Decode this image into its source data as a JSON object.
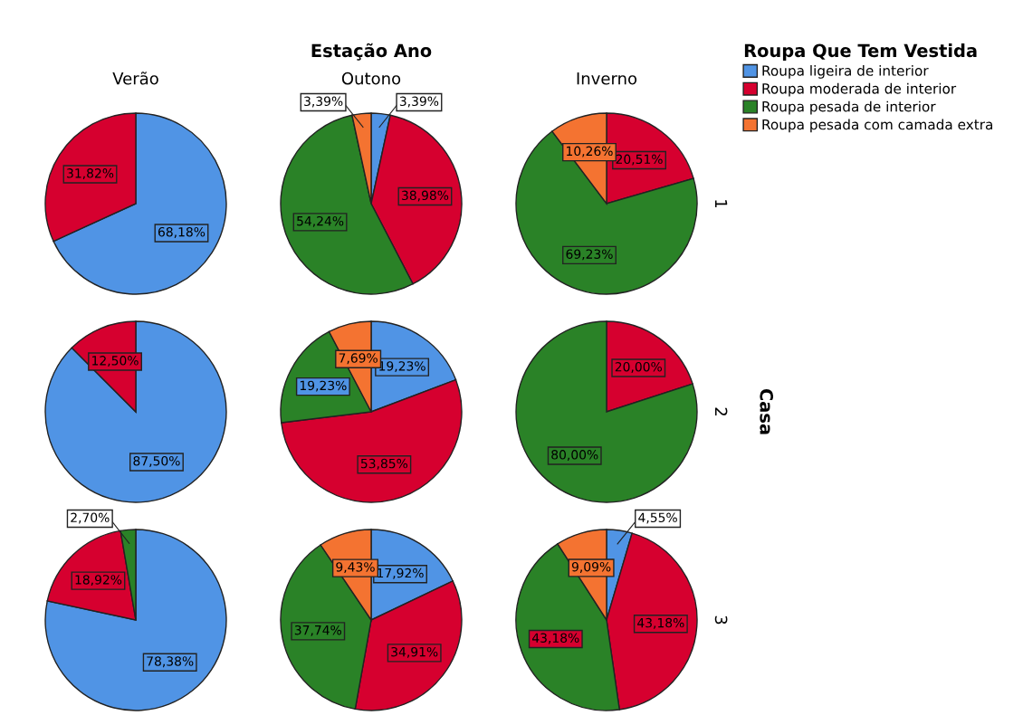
{
  "chart_data": [
    {
      "type": "pie",
      "title": "Verão",
      "categories": [
        null,
        null
      ],
      "values": [
        68.18,
        31.82
      ],
      "colors": [
        "#5094e5",
        "#d6002f"
      ],
      "value_labels": [
        "68,18%",
        "31,82%"
      ]
    },
    {
      "type": "pie",
      "title": "Outono",
      "annotations": [
        "Estação Ano"
      ],
      "legend": "right",
      "legend_title": "Roupa Que Tem Vestida",
      "categories": [
        "Roupa ligeira de interior",
        "Roupa moderada de interior",
        "Roupa pesada de interior",
        "Roupa pesada com camada extra"
      ],
      "values": [
        3.39,
        38.98,
        54.24,
        3.39
      ],
      "colors": [
        "#5094e5",
        "#d6002f",
        "#2a8227",
        "#f47331"
      ],
      "value_labels": [
        "3,39%",
        "38,98%",
        "54,24%",
        "3,39%"
      ]
    },
    {
      "type": "pie",
      "title": "Inverno",
      "ylabel": "1",
      "categories": [
        null,
        null,
        null
      ],
      "values": [
        20.51,
        69.23,
        10.26
      ],
      "colors": [
        "#d6002f",
        "#2a8227",
        "#f47331"
      ],
      "value_labels": [
        "20,51%",
        "69,23%",
        "10,26%"
      ]
    },
    {
      "type": "pie",
      "categories": [
        null,
        null
      ],
      "values": [
        87.5,
        12.5
      ],
      "colors": [
        "#5094e5",
        "#d6002f"
      ],
      "value_labels": [
        "87,50%",
        "12,50%"
      ]
    },
    {
      "type": "pie",
      "categories": [
        null,
        null,
        null,
        null
      ],
      "values": [
        19.23,
        53.85,
        19.23,
        7.69
      ],
      "colors": [
        "#5094e5",
        "#d6002f",
        "#2a8227",
        "#f47331"
      ],
      "value_labels": [
        "19,23%",
        "53,85%",
        "19,23%",
        "7,69%"
      ]
    },
    {
      "type": "pie",
      "ylabel": "2",
      "y2label": "Casa",
      "categories": [
        null,
        null
      ],
      "values": [
        20.0,
        80.0
      ],
      "colors": [
        "#d6002f",
        "#2a8227"
      ],
      "value_labels": [
        "20,00%",
        "80,00%"
      ]
    },
    {
      "type": "pie",
      "categories": [
        null,
        null,
        null
      ],
      "values": [
        78.38,
        18.92,
        2.7
      ],
      "colors": [
        "#5094e5",
        "#d6002f",
        "#2a8227"
      ],
      "value_labels": [
        "78,38%",
        "18,92%",
        "2,70%"
      ]
    },
    {
      "type": "pie",
      "categories": [
        null,
        null,
        null,
        null
      ],
      "values": [
        17.92,
        34.91,
        37.74,
        9.43
      ],
      "colors": [
        "#5094e5",
        "#d6002f",
        "#2a8227",
        "#f47331"
      ],
      "value_labels": [
        "17,92%",
        "34,91%",
        "37,74%",
        "9,43%"
      ]
    },
    {
      "type": "pie",
      "ylabel": "3",
      "categories": [
        null,
        null,
        null,
        null
      ],
      "values": [
        4.55,
        43.18,
        43.18,
        9.09
      ],
      "colors": [
        "#5094e5",
        "#d6002f",
        "#2a8227",
        "#f47331"
      ],
      "value_labels": [
        "4,55%",
        "43,18%",
        "43,18%",
        "9,09%"
      ]
    }
  ]
}
